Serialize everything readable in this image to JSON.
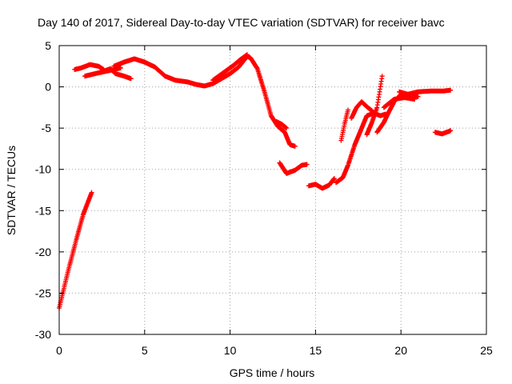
{
  "chart_data": {
    "type": "scatter",
    "title": "Day 140 of 2017, Sidereal Day-to-day VTEC variation (SDTVAR) for receiver bavc",
    "xlabel": "GPS time / hours",
    "ylabel": "SDTVAR / TECUs",
    "xlim": [
      0,
      25
    ],
    "ylim": [
      -30,
      5
    ],
    "xticks": [
      0,
      5,
      10,
      15,
      20,
      25
    ],
    "yticks": [
      -30,
      -25,
      -20,
      -15,
      -10,
      -5,
      0,
      5
    ],
    "grid": true,
    "marker": "plus",
    "series_color": "#ff0000",
    "segments": [
      [
        [
          0.0,
          -26.8
        ],
        [
          0.5,
          -22.5
        ],
        [
          1.0,
          -18.5
        ],
        [
          1.4,
          -15.5
        ],
        [
          1.9,
          -12.8
        ]
      ],
      [
        [
          0.9,
          2.1
        ],
        [
          1.3,
          2.3
        ],
        [
          1.8,
          2.7
        ],
        [
          2.3,
          2.5
        ],
        [
          2.6,
          2.1
        ]
      ],
      [
        [
          1.5,
          1.3
        ],
        [
          2.3,
          1.7
        ],
        [
          3.0,
          2.0
        ],
        [
          3.6,
          2.3
        ]
      ],
      [
        [
          2.6,
          1.9
        ],
        [
          3.0,
          2.2
        ],
        [
          3.3,
          1.6
        ],
        [
          3.8,
          1.3
        ],
        [
          4.2,
          1.0
        ]
      ],
      [
        [
          3.2,
          2.5
        ],
        [
          3.8,
          3.0
        ],
        [
          4.4,
          3.4
        ],
        [
          5.0,
          3.0
        ],
        [
          5.6,
          2.4
        ],
        [
          6.2,
          1.3
        ],
        [
          6.8,
          0.8
        ],
        [
          7.5,
          0.6
        ],
        [
          8.0,
          0.3
        ],
        [
          8.5,
          0.1
        ],
        [
          9.0,
          0.4
        ],
        [
          9.5,
          1.0
        ],
        [
          10.0,
          1.6
        ],
        [
          10.5,
          2.4
        ],
        [
          11.0,
          3.7
        ],
        [
          11.2,
          3.5
        ],
        [
          11.6,
          2.2
        ],
        [
          12.0,
          -0.5
        ],
        [
          12.4,
          -3.5
        ],
        [
          12.8,
          -4.8
        ],
        [
          13.2,
          -5.5
        ],
        [
          13.5,
          -7.0
        ],
        [
          13.8,
          -7.2
        ]
      ],
      [
        [
          9.0,
          0.8
        ],
        [
          9.6,
          1.7
        ],
        [
          10.2,
          2.6
        ],
        [
          10.6,
          3.3
        ],
        [
          11.0,
          3.9
        ]
      ],
      [
        [
          12.7,
          -4.2
        ],
        [
          13.0,
          -4.5
        ],
        [
          13.3,
          -5.0
        ]
      ],
      [
        [
          12.9,
          -9.2
        ],
        [
          13.3,
          -10.5
        ],
        [
          13.8,
          -10.1
        ],
        [
          14.2,
          -9.5
        ],
        [
          14.5,
          -9.4
        ]
      ],
      [
        [
          14.6,
          -12.0
        ],
        [
          15.0,
          -11.8
        ],
        [
          15.4,
          -12.3
        ],
        [
          15.8,
          -11.9
        ],
        [
          16.1,
          -11.1
        ]
      ],
      [
        [
          16.2,
          -11.6
        ],
        [
          16.6,
          -11.0
        ],
        [
          16.9,
          -9.5
        ],
        [
          17.3,
          -7.0
        ],
        [
          17.7,
          -5.0
        ],
        [
          18.0,
          -3.5
        ],
        [
          18.4,
          -3.2
        ],
        [
          18.8,
          -3.5
        ],
        [
          19.1,
          -3.3
        ]
      ],
      [
        [
          16.5,
          -6.5
        ],
        [
          16.7,
          -4.5
        ],
        [
          16.9,
          -2.8
        ]
      ],
      [
        [
          17.1,
          -3.8
        ],
        [
          17.4,
          -2.5
        ],
        [
          17.7,
          -1.8
        ],
        [
          18.0,
          -2.4
        ],
        [
          18.3,
          -2.9
        ]
      ],
      [
        [
          18.0,
          -5.8
        ],
        [
          18.3,
          -4.3
        ],
        [
          18.6,
          -2.5
        ],
        [
          18.9,
          1.3
        ]
      ],
      [
        [
          18.6,
          -5.5
        ],
        [
          19.0,
          -4.3
        ],
        [
          19.3,
          -3.0
        ],
        [
          19.6,
          -1.8
        ],
        [
          20.0,
          -0.9
        ],
        [
          20.6,
          -1.0
        ],
        [
          21.0,
          -1.2
        ]
      ],
      [
        [
          19.0,
          -2.5
        ],
        [
          19.6,
          -1.5
        ],
        [
          20.2,
          -1.3
        ],
        [
          20.8,
          -1.5
        ]
      ],
      [
        [
          19.9,
          -0.6
        ],
        [
          20.4,
          -0.9
        ],
        [
          21.0,
          -0.6
        ],
        [
          21.8,
          -0.5
        ],
        [
          22.5,
          -0.5
        ],
        [
          22.9,
          -0.4
        ]
      ],
      [
        [
          22.0,
          -5.5
        ],
        [
          22.4,
          -5.7
        ],
        [
          22.8,
          -5.4
        ],
        [
          22.9,
          -5.3
        ]
      ]
    ]
  }
}
